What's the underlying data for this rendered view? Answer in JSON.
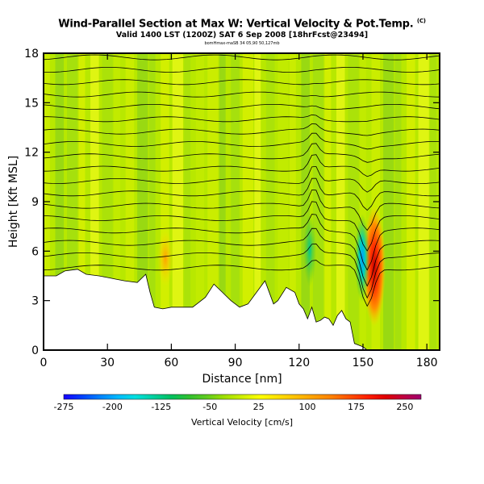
{
  "header": {
    "title": "Wind-Parallel Section at Max W: Vertical Velocity & Pot.Temp.",
    "title_mark": "(C)",
    "subtitle": "Valid 1400 LST (1200Z) SAT 6 Sep 2008 [18hrFcst@23494]",
    "small_line": "bomHmax-maSB 34 05,90 50,127mb"
  },
  "chart_data": {
    "type": "heatmap",
    "title": "Wind-Parallel Section at Max W: Vertical Velocity & Pot.Temp.",
    "xlabel": "Distance [nm]",
    "ylabel": "Height [Kft MSL]",
    "xlim": [
      0,
      186
    ],
    "ylim": [
      0,
      18
    ],
    "x_ticks": [
      0,
      30,
      60,
      90,
      120,
      150,
      180
    ],
    "y_ticks": [
      0,
      3,
      6,
      9,
      12,
      15,
      18
    ],
    "colorbar": {
      "label": "Vertical Velocity [cm/s]",
      "tick_labels": [
        "-275",
        "-200",
        "-125",
        "-50",
        "25",
        "100",
        "175",
        "250"
      ],
      "range": [
        -275,
        275
      ],
      "colors": [
        "#1800ff",
        "#0040ff",
        "#0080ff",
        "#00b8ff",
        "#00e0e0",
        "#00d0a0",
        "#00c060",
        "#30c030",
        "#60cc20",
        "#a0e000",
        "#d0f000",
        "#ffff00",
        "#ffe000",
        "#ffc000",
        "#ffa000",
        "#ff8000",
        "#ff5000",
        "#ff2000",
        "#e00000",
        "#c00040",
        "#a00070"
      ]
    },
    "terrain_profile": {
      "x": [
        0,
        6,
        10,
        16,
        20,
        26,
        30,
        34,
        38,
        44,
        48,
        50,
        52,
        56,
        60,
        64,
        70,
        76,
        80,
        84,
        88,
        92,
        96,
        100,
        104,
        108,
        110,
        114,
        118,
        120,
        122,
        124,
        126,
        128,
        130,
        132,
        134,
        136,
        138,
        140,
        142,
        144,
        146,
        148,
        150,
        152,
        154,
        156,
        160,
        170,
        180,
        186
      ],
      "height_kft": [
        4.5,
        4.5,
        4.8,
        4.9,
        4.6,
        4.5,
        4.4,
        4.3,
        4.2,
        4.1,
        4.6,
        3.5,
        2.6,
        2.5,
        2.6,
        2.6,
        2.6,
        3.2,
        4.0,
        3.5,
        3.0,
        2.6,
        2.8,
        3.5,
        4.2,
        2.8,
        3.0,
        3.8,
        3.5,
        2.8,
        2.5,
        1.9,
        2.6,
        1.7,
        1.8,
        2.0,
        1.9,
        1.5,
        2.1,
        2.4,
        1.9,
        1.7,
        0.4,
        0.3,
        0.2,
        0.0,
        0.0,
        0.0,
        0.0,
        0.0,
        0.0,
        0.0
      ]
    },
    "vertical_velocity_features": [
      {
        "x_center": 155,
        "height_kft": [
          2,
          9
        ],
        "peak_cm_s": 250
      },
      {
        "x_center": 149,
        "height_kft": [
          3,
          7
        ],
        "peak_cm_s": -200
      },
      {
        "x_center": 127,
        "height_kft": [
          4,
          7
        ],
        "peak_cm_s": -125
      },
      {
        "x_center": 58,
        "height_kft": [
          4,
          6
        ],
        "peak_cm_s": 100
      }
    ]
  }
}
